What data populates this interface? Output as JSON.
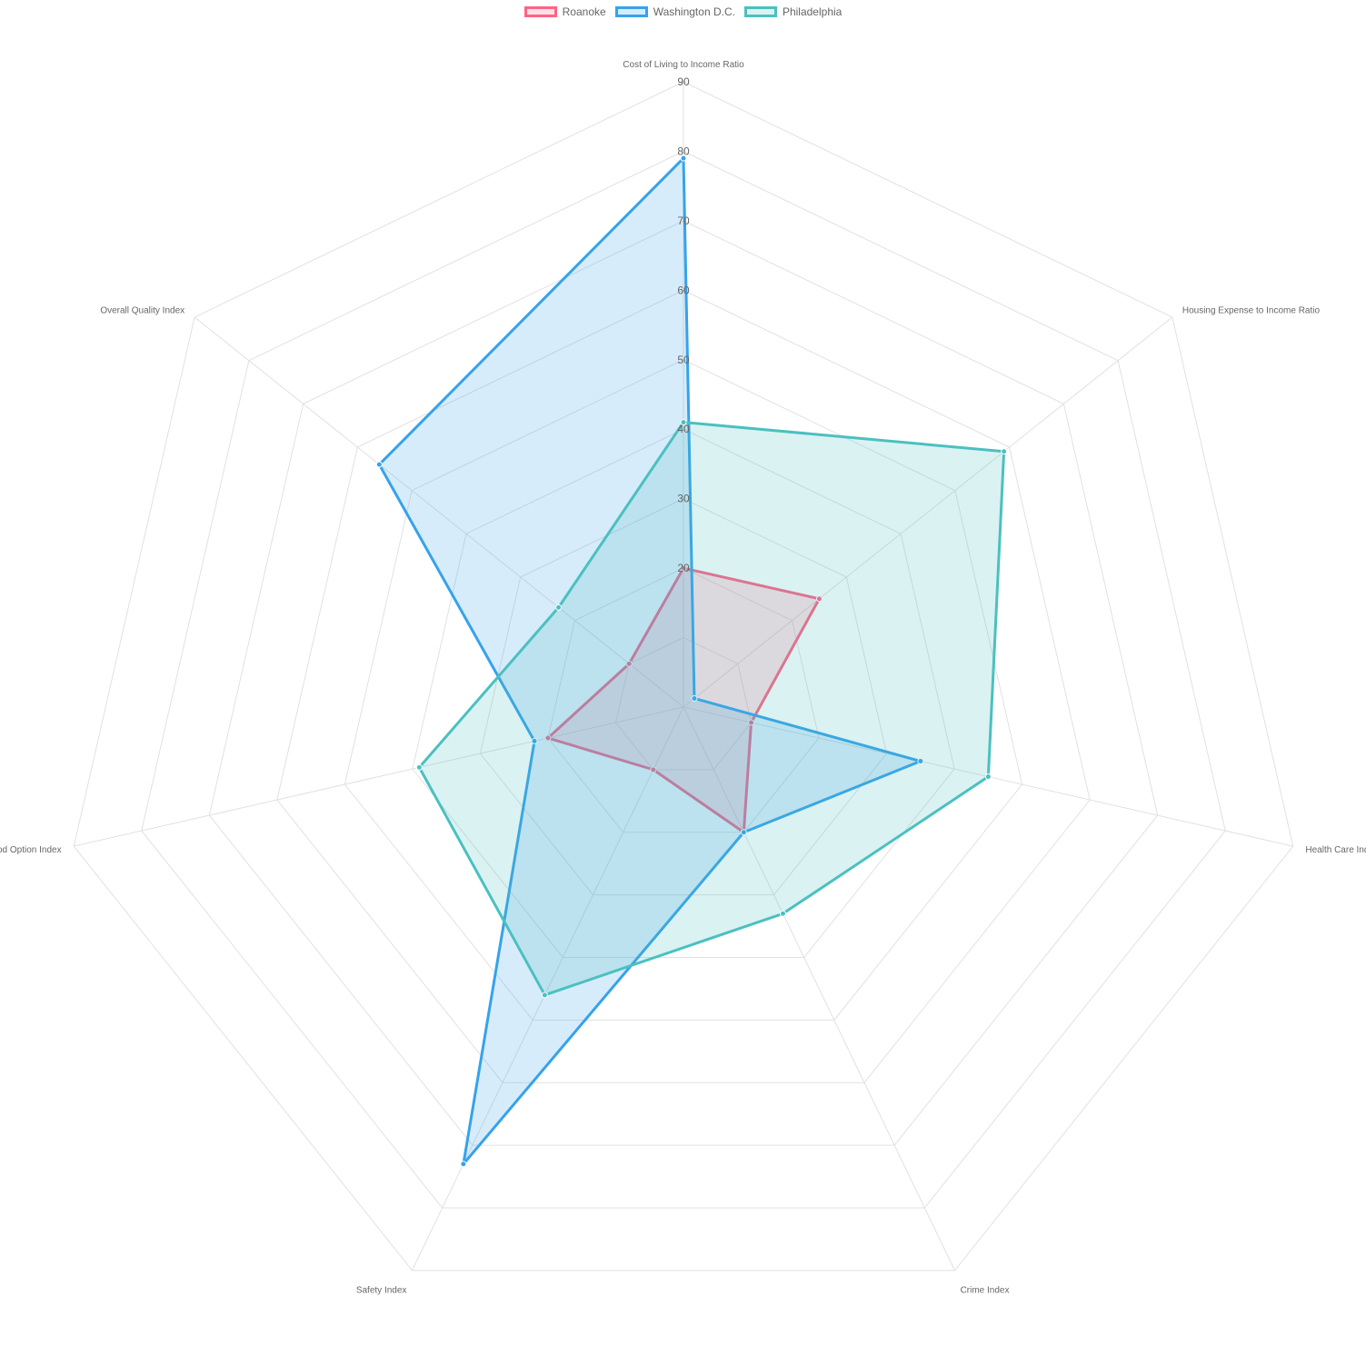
{
  "chart_data": {
    "type": "radar",
    "labels": [
      "Cost of Living to Income Ratio",
      "Housing Expense to Income Ratio",
      "Health Care Index",
      "Crime Index",
      "Safety Index",
      "Food Option Index",
      "Overall Quality Index"
    ],
    "r_range": [
      0,
      90
    ],
    "ticks": [
      "20",
      "30",
      "40",
      "50",
      "60",
      "70",
      "80",
      "90"
    ],
    "grid": true,
    "legend_position": "top",
    "series": [
      {
        "name": "Roanoke",
        "color": "#ff6384",
        "fill": "rgba(255,99,132,0.2)",
        "values": [
          20,
          25,
          10,
          20,
          10,
          20,
          10
        ]
      },
      {
        "name": "Washington D.C.",
        "color": "#36a2eb",
        "fill": "rgba(54,162,235,0.2)",
        "values": [
          79,
          2,
          35,
          20,
          73,
          22,
          56
        ]
      },
      {
        "name": "Philadelphia",
        "color": "#4bc0c0",
        "fill": "rgba(75,192,192,0.2)",
        "values": [
          41,
          59,
          45,
          33,
          46,
          39,
          23
        ]
      }
    ]
  }
}
